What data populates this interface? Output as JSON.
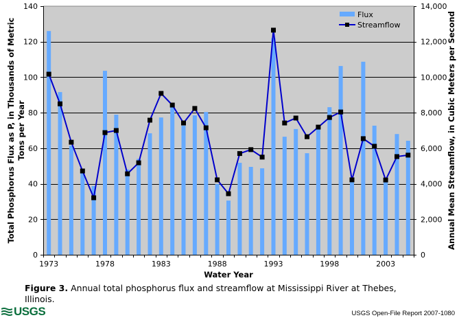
{
  "chart_data": {
    "type": "bar+line",
    "x": [
      1973,
      1974,
      1975,
      1976,
      1977,
      1978,
      1979,
      1980,
      1981,
      1982,
      1983,
      1984,
      1985,
      1986,
      1987,
      1988,
      1989,
      1990,
      1991,
      1992,
      1993,
      1994,
      1995,
      1996,
      1997,
      1998,
      1999,
      2000,
      2001,
      2002,
      2003,
      2004,
      2005
    ],
    "series": [
      {
        "name": "Flux",
        "kind": "bar",
        "axis": "left",
        "color": "#66aaff",
        "values": [
          126,
          91.6,
          61.5,
          46,
          38.7,
          103.6,
          78.9,
          48,
          54,
          68.4,
          77.3,
          83.5,
          72.7,
          78.5,
          80.4,
          39.8,
          30.5,
          51.8,
          49.5,
          48.7,
          122,
          66.5,
          70.8,
          57.2,
          70.8,
          83.1,
          106.3,
          42.5,
          108.7,
          72.7,
          41,
          68,
          64.2
        ]
      },
      {
        "name": "Streamflow",
        "kind": "line",
        "axis": "right",
        "color": "#0000cc",
        "marker_color": "#000000",
        "values": [
          10170,
          8500,
          6340,
          4720,
          3210,
          6880,
          7000,
          4560,
          5180,
          7580,
          9090,
          8430,
          7420,
          8240,
          7150,
          4220,
          3440,
          5700,
          5920,
          5500,
          12650,
          7420,
          7700,
          6650,
          7190,
          7730,
          8040,
          4220,
          6540,
          6110,
          4210,
          5530,
          5610
        ]
      }
    ],
    "xlabel": "Water Year",
    "ylabel": "Total Phosphorus Flux as P, in Thousands of Metric Tons per Year",
    "ylabel_lines": [
      "Total Phosphorus Flux as P, in Thousands of Metric",
      "Tons per Year"
    ],
    "y2label": "Annual Mean Streamflow, in Cubic Meters per Second",
    "ylim": [
      0,
      140
    ],
    "y2lim": [
      0,
      14000
    ],
    "yticks": [
      "0",
      "20",
      "40",
      "60",
      "80",
      "100",
      "120",
      "140"
    ],
    "y2ticks": [
      "0",
      "2,000",
      "4,000",
      "6,000",
      "8,000",
      "10,000",
      "12,000",
      "14,000"
    ],
    "xticks": [
      "1973",
      "1978",
      "1983",
      "1988",
      "1993",
      "1998",
      "2003"
    ],
    "xtick_years": [
      1973,
      1978,
      1983,
      1988,
      1993,
      1998,
      2003
    ],
    "grid": true,
    "legend": [
      "Flux",
      "Streamflow"
    ],
    "legend_position": "top-right",
    "plot_background": "#cccccc"
  },
  "caption": {
    "label": "Figure 3.",
    "text": " Annual total phosphorus flux and streamflow at Mississippi River at Thebes, Illinois."
  },
  "footer": {
    "logo_text": "USGS",
    "report": "USGS Open-File Report 2007-1080"
  }
}
